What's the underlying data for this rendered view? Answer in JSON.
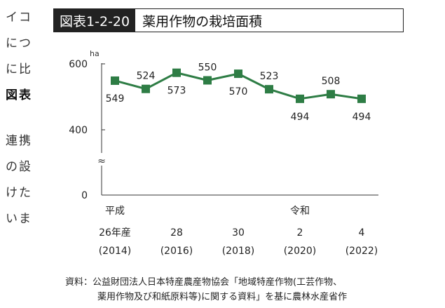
{
  "side_text": [
    "イコ",
    "につ",
    "に比",
    "図表",
    "連携",
    "の設",
    "けた",
    "いま"
  ],
  "figure": {
    "label": "図表1-2-20",
    "title": "薬用作物の栽培面積"
  },
  "chart_data": {
    "type": "line",
    "unit": "ha",
    "x": [
      2014,
      2015,
      2016,
      2017,
      2018,
      2019,
      2020,
      2021,
      2022
    ],
    "values": [
      549,
      524,
      573,
      550,
      570,
      523,
      494,
      508,
      494
    ],
    "y_ticks": [
      600,
      400,
      0
    ],
    "axis_break": "≈",
    "x_era_labels": [
      {
        "text": "平成",
        "x": 2014
      },
      {
        "text": "令和",
        "x": 2020
      }
    ],
    "x_tick_labels": [
      {
        "x": 2014,
        "line1": "26年産",
        "line2": "(2014)"
      },
      {
        "x": 2016,
        "line1": "28",
        "line2": "(2016)"
      },
      {
        "x": 2018,
        "line1": "30",
        "line2": "(2018)"
      },
      {
        "x": 2020,
        "line1": "2",
        "line2": "(2020)"
      },
      {
        "x": 2022,
        "line1": "4",
        "line2": "(2022)"
      }
    ],
    "colors": {
      "series": "#2e7d45"
    }
  },
  "source": {
    "line1": "資料：公益財団法人日本特産農産物協会「地域特産作物(工芸作物、",
    "line2": "薬用作物及び和紙原料等)に関する資料」を基に農林水産省作"
  }
}
